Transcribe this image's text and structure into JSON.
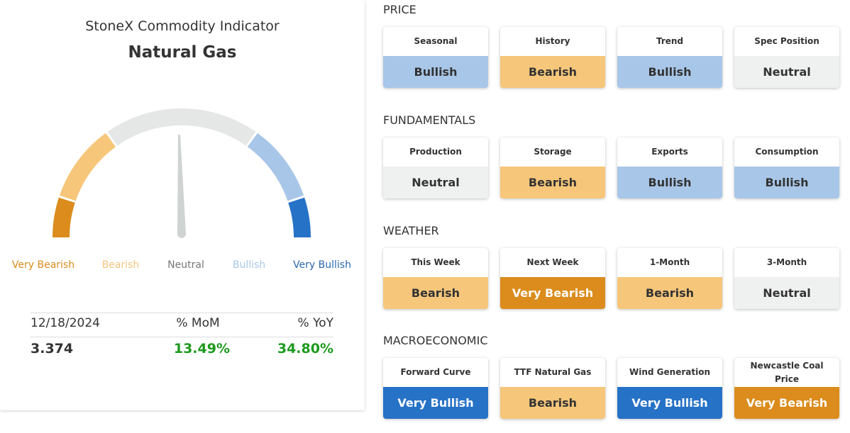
{
  "header": {
    "title": "StoneX Commodity Indicator",
    "commodity": "Natural Gas"
  },
  "gauge": [
    {
      "label": "Very Bearish",
      "color": "#db8c1c",
      "label_color": "#db8c1c"
    },
    {
      "label": "Bearish",
      "color": "#f6c67a",
      "label_color": "#f4c47c"
    },
    {
      "label": "Neutral",
      "color": "#e5e7e6",
      "label_color": "#777777"
    },
    {
      "label": "Bullish",
      "color": "#a8c6e8",
      "label_color": "#a8c6e8"
    },
    {
      "label": "Very Bullish",
      "color": "#2672c7",
      "label_color": "#2a68b0"
    }
  ],
  "stats": {
    "headers": [
      "12/18/2024",
      "% MoM",
      "% YoY"
    ],
    "values": [
      "3.374",
      "13.49%",
      "34.80%"
    ]
  },
  "sections": [
    {
      "title": "PRICE",
      "cards": [
        {
          "label": "Seasonal",
          "signal": "Bullish",
          "color": "#a8c6e8"
        },
        {
          "label": "History",
          "signal": "Bearish",
          "color": "#f6c67a"
        },
        {
          "label": "Trend",
          "signal": "Bullish",
          "color": "#a8c6e8"
        },
        {
          "label": "Spec Position",
          "signal": "Neutral",
          "color": "#eff1f0"
        }
      ]
    },
    {
      "title": "FUNDAMENTALS",
      "cards": [
        {
          "label": "Production",
          "signal": "Neutral",
          "color": "#eff1f0"
        },
        {
          "label": "Storage",
          "signal": "Bearish",
          "color": "#f6c67a"
        },
        {
          "label": "Exports",
          "signal": "Bullish",
          "color": "#a8c6e8"
        },
        {
          "label": "Consumption",
          "signal": "Bullish",
          "color": "#a8c6e8"
        }
      ]
    },
    {
      "title": "WEATHER",
      "cards": [
        {
          "label": "This Week",
          "signal": "Bearish",
          "color": "#f6c67a"
        },
        {
          "label": "Next Week",
          "signal": "Very Bearish",
          "color": "#db8c1c"
        },
        {
          "label": "1-Month",
          "signal": "Bearish",
          "color": "#f6c67a"
        },
        {
          "label": "3-Month",
          "signal": "Neutral",
          "color": "#eff1f0"
        }
      ]
    },
    {
      "title": "MACROECONOMIC",
      "cards": [
        {
          "label": "Forward Curve",
          "signal": "Very Bullish",
          "color": "#2672c7"
        },
        {
          "label": "TTF Natural Gas",
          "signal": "Bearish",
          "color": "#f6c67a"
        },
        {
          "label": "Wind Generation",
          "signal": "Very Bullish",
          "color": "#2672c7"
        },
        {
          "label": "Newcastle Coal Price",
          "signal": "Very Bearish",
          "color": "#db8c1c"
        }
      ]
    }
  ]
}
